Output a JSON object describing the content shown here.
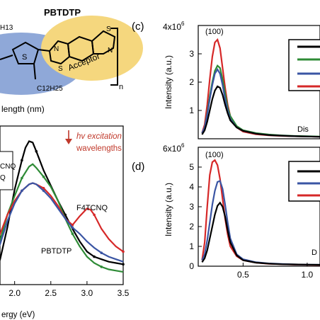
{
  "molecule": {
    "name": "PBTDTP",
    "acceptor_label": "Acceptor",
    "side_chain_top": "H13",
    "side_chain_bottom": "C12H25",
    "repeat_label": "n",
    "atom_S": "S",
    "atom_N": "N"
  },
  "absorbance_panel": {
    "xlabel_fragment": "ergy (eV)",
    "top_label_fragment": "length (nm)",
    "legend_fragments": [
      "CNQ",
      "Q"
    ],
    "annotation_excitation_line1": "hv excitation",
    "annotation_excitation_line2": "wavelengths",
    "annotation_f4tcnq": "F4TCNQ",
    "annotation_pbtdtp": "PBTDTP",
    "xticks": [
      "2.0",
      "2.5",
      "3.0",
      "3.5"
    ],
    "colors": {
      "black": "#000000",
      "green": "#2e8b36",
      "red": "#d62828",
      "blue": "#3a55a4",
      "accent": "#c0392b"
    }
  },
  "panel_c": {
    "label": "(c)",
    "peak_label": "(100)",
    "ylabel": "Intensity (a.u.)",
    "yexp_label": "4x10",
    "yexp_sup": "6",
    "yticks": [
      "1",
      "2",
      "3"
    ],
    "corner_text": "Dis"
  },
  "panel_d": {
    "label": "(d)",
    "peak_label": "(100)",
    "ylabel": "Intensity (a.u.)",
    "yexp_label": "6x10",
    "yexp_sup": "6",
    "yticks": [
      "0",
      "1",
      "2",
      "3",
      "4",
      "5"
    ],
    "xticks": [
      "0.5",
      "1.0"
    ],
    "corner_text": "D"
  },
  "chart_data": [
    {
      "type": "line",
      "title": "",
      "xlabel": "Energy (eV)",
      "ylabel": "",
      "xlim": [
        1.7,
        3.5
      ],
      "ylim": [
        0,
        1.25
      ],
      "series": [
        {
          "color": "#000000",
          "x": [
            1.7,
            1.8,
            1.9,
            2.0,
            2.1,
            2.15,
            2.2,
            2.25,
            2.3,
            2.4,
            2.5,
            2.6,
            2.7,
            2.8,
            2.9,
            3.0,
            3.1,
            3.2,
            3.3,
            3.4,
            3.5
          ],
          "y": [
            0.05,
            0.2,
            0.45,
            0.75,
            0.98,
            1.08,
            1.13,
            1.12,
            1.05,
            0.9,
            0.78,
            0.66,
            0.55,
            0.44,
            0.34,
            0.26,
            0.22,
            0.2,
            0.18,
            0.17,
            0.16
          ]
        },
        {
          "color": "#2e8b36",
          "x": [
            1.7,
            1.8,
            1.9,
            2.0,
            2.1,
            2.2,
            2.25,
            2.3,
            2.4,
            2.5,
            2.6,
            2.7,
            2.8,
            2.9,
            3.0,
            3.1,
            3.2,
            3.3,
            3.4,
            3.5
          ],
          "y": [
            0.2,
            0.35,
            0.55,
            0.7,
            0.84,
            0.93,
            0.95,
            0.92,
            0.85,
            0.77,
            0.66,
            0.52,
            0.4,
            0.3,
            0.22,
            0.17,
            0.14,
            0.12,
            0.11,
            0.1
          ]
        },
        {
          "color": "#d62828",
          "x": [
            1.7,
            1.8,
            1.9,
            2.0,
            2.1,
            2.2,
            2.25,
            2.3,
            2.4,
            2.5,
            2.6,
            2.7,
            2.8,
            2.9,
            3.0,
            3.05,
            3.1,
            3.2,
            3.3,
            3.4,
            3.5
          ],
          "y": [
            0.3,
            0.4,
            0.55,
            0.66,
            0.74,
            0.79,
            0.8,
            0.79,
            0.76,
            0.7,
            0.62,
            0.52,
            0.47,
            0.54,
            0.6,
            0.59,
            0.55,
            0.44,
            0.36,
            0.3,
            0.26
          ]
        },
        {
          "color": "#3a55a4",
          "x": [
            1.7,
            1.8,
            1.9,
            2.0,
            2.1,
            2.2,
            2.25,
            2.3,
            2.4,
            2.5,
            2.6,
            2.7,
            2.8,
            2.9,
            3.0,
            3.1,
            3.2,
            3.3,
            3.4,
            3.5
          ],
          "y": [
            0.18,
            0.32,
            0.5,
            0.64,
            0.74,
            0.79,
            0.8,
            0.79,
            0.74,
            0.68,
            0.6,
            0.52,
            0.45,
            0.4,
            0.34,
            0.29,
            0.25,
            0.22,
            0.2,
            0.18
          ]
        }
      ]
    },
    {
      "type": "line",
      "title": "",
      "xlabel": "",
      "ylabel": "Intensity (a.u.)",
      "xlim": [
        0.15,
        1.1
      ],
      "ylim": [
        0,
        4
      ],
      "series": [
        {
          "color": "#d62828",
          "x": [
            0.18,
            0.2,
            0.22,
            0.24,
            0.26,
            0.28,
            0.3,
            0.32,
            0.34,
            0.36,
            0.38,
            0.4,
            0.45,
            0.5,
            0.6,
            0.7,
            0.8,
            0.9,
            1.0,
            1.1
          ],
          "y": [
            0.2,
            0.5,
            1.2,
            2.1,
            2.9,
            3.4,
            3.5,
            3.2,
            2.5,
            1.8,
            1.2,
            0.8,
            0.4,
            0.25,
            0.16,
            0.12,
            0.1,
            0.09,
            0.08,
            0.07
          ]
        },
        {
          "color": "#2e8b36",
          "x": [
            0.18,
            0.2,
            0.22,
            0.24,
            0.26,
            0.28,
            0.3,
            0.32,
            0.34,
            0.36,
            0.38,
            0.4,
            0.45,
            0.5,
            0.6,
            0.7,
            0.8,
            0.9,
            1.0,
            1.1
          ],
          "y": [
            0.2,
            0.4,
            0.9,
            1.5,
            2.0,
            2.4,
            2.58,
            2.5,
            2.1,
            1.6,
            1.1,
            0.8,
            0.45,
            0.3,
            0.2,
            0.15,
            0.12,
            0.1,
            0.09,
            0.08
          ]
        },
        {
          "color": "#3a55a4",
          "x": [
            0.18,
            0.2,
            0.22,
            0.24,
            0.26,
            0.28,
            0.3,
            0.32,
            0.34,
            0.36,
            0.38,
            0.4,
            0.45,
            0.5,
            0.6,
            0.7,
            0.8,
            0.9,
            1.0,
            1.1
          ],
          "y": [
            0.2,
            0.4,
            0.85,
            1.4,
            1.9,
            2.3,
            2.45,
            2.3,
            1.9,
            1.4,
            1.0,
            0.7,
            0.4,
            0.28,
            0.18,
            0.13,
            0.11,
            0.09,
            0.08,
            0.07
          ]
        },
        {
          "color": "#000000",
          "x": [
            0.18,
            0.2,
            0.22,
            0.24,
            0.26,
            0.28,
            0.3,
            0.32,
            0.34,
            0.36,
            0.38,
            0.4,
            0.45,
            0.5,
            0.6,
            0.7,
            0.8,
            0.9,
            1.0,
            1.1
          ],
          "y": [
            0.15,
            0.3,
            0.6,
            1.0,
            1.4,
            1.7,
            1.85,
            1.8,
            1.55,
            1.2,
            0.9,
            0.65,
            0.4,
            0.28,
            0.18,
            0.13,
            0.11,
            0.09,
            0.08,
            0.07
          ]
        }
      ]
    },
    {
      "type": "line",
      "title": "",
      "xlabel": "",
      "ylabel": "Intensity (a.u.)",
      "xlim": [
        0.15,
        1.1
      ],
      "ylim": [
        0,
        6
      ],
      "series": [
        {
          "color": "#d62828",
          "x": [
            0.18,
            0.2,
            0.22,
            0.24,
            0.26,
            0.28,
            0.3,
            0.32,
            0.34,
            0.36,
            0.38,
            0.4,
            0.45,
            0.5,
            0.6,
            0.7,
            0.8,
            0.9,
            1.0,
            1.1
          ],
          "y": [
            0.3,
            1.2,
            3.0,
            4.6,
            5.25,
            5.35,
            5.1,
            4.4,
            3.4,
            2.4,
            1.6,
            1.0,
            0.5,
            0.3,
            0.18,
            0.12,
            0.1,
            0.08,
            0.07,
            0.06
          ]
        },
        {
          "color": "#3a55a4",
          "x": [
            0.18,
            0.2,
            0.22,
            0.24,
            0.26,
            0.28,
            0.3,
            0.32,
            0.34,
            0.36,
            0.38,
            0.4,
            0.45,
            0.5,
            0.6,
            0.7,
            0.8,
            0.9,
            1.0,
            1.1
          ],
          "y": [
            0.3,
            0.6,
            1.3,
            2.2,
            3.1,
            3.8,
            4.25,
            4.3,
            3.9,
            3.1,
            2.2,
            1.4,
            0.6,
            0.35,
            0.2,
            0.14,
            0.11,
            0.09,
            0.08,
            0.07
          ]
        },
        {
          "color": "#000000",
          "x": [
            0.18,
            0.2,
            0.22,
            0.24,
            0.26,
            0.28,
            0.3,
            0.32,
            0.34,
            0.36,
            0.38,
            0.4,
            0.45,
            0.5,
            0.6,
            0.7,
            0.8,
            0.9,
            1.0,
            1.1
          ],
          "y": [
            0.2,
            0.4,
            0.8,
            1.4,
            2.0,
            2.6,
            3.05,
            3.2,
            3.0,
            2.5,
            1.8,
            1.2,
            0.55,
            0.3,
            0.18,
            0.13,
            0.1,
            0.09,
            0.08,
            0.07
          ]
        }
      ]
    }
  ]
}
